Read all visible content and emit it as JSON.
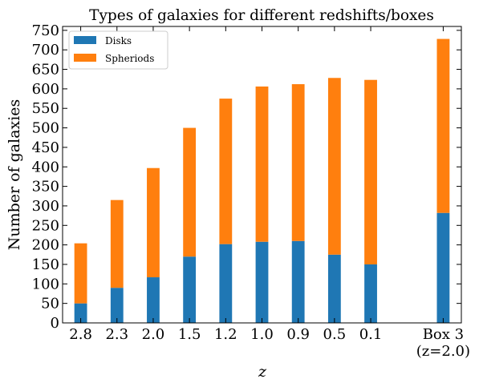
{
  "chart_data": {
    "type": "bar",
    "stacked": true,
    "title": "Types of galaxies for different redshifts/boxes",
    "xlabel": "z",
    "ylabel": "Number of galaxies",
    "ylim": [
      0,
      760
    ],
    "yticks": [
      0,
      50,
      100,
      150,
      200,
      250,
      300,
      350,
      400,
      450,
      500,
      550,
      600,
      650,
      700,
      750
    ],
    "categories": [
      "2.8",
      "2.3",
      "2.0",
      "1.5",
      "1.2",
      "1.0",
      "0.9",
      "0.5",
      "0.1",
      "Box 3 (z=2.0)"
    ],
    "category_labels": [
      [
        "2.8"
      ],
      [
        "2.3"
      ],
      [
        "2.0"
      ],
      [
        "1.5"
      ],
      [
        "1.2"
      ],
      [
        "1.0"
      ],
      [
        "0.9"
      ],
      [
        "0.5"
      ],
      [
        "0.1"
      ],
      [
        "Box 3",
        "(z=2.0)"
      ]
    ],
    "x_positions": [
      0,
      1,
      2,
      3,
      4,
      5,
      6,
      7,
      8,
      10
    ],
    "xlim": [
      -0.5,
      10.5
    ],
    "series": [
      {
        "name": "Disks",
        "color": "#1f77b4",
        "values": [
          50,
          90,
          117,
          170,
          202,
          208,
          210,
          175,
          150,
          282
        ]
      },
      {
        "name": "Spheriods",
        "color": "#ff7f0e",
        "values": [
          154,
          225,
          280,
          330,
          373,
          398,
          402,
          453,
          473,
          446
        ]
      }
    ],
    "grid": false,
    "legend_position": "top-left"
  }
}
